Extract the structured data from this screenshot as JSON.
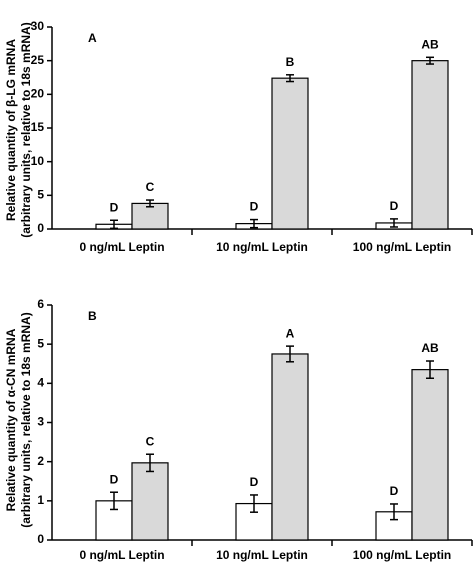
{
  "chart_data": [
    {
      "type": "bar",
      "panel_label": "A",
      "ylabel": "Relative quantity of β-LG mRNA",
      "ylabel_sub": "(arbitrary units, relative to 18s mRNA)",
      "categories": [
        "0 ng/mL Leptin",
        "10 ng/mL Leptin",
        "100 ng/mL Leptin"
      ],
      "series": [
        {
          "color": "#ffffff",
          "values": [
            0.7,
            0.8,
            0.9
          ],
          "errors": [
            0.6,
            0.6,
            0.6
          ],
          "letters": [
            "D",
            "D",
            "D"
          ]
        },
        {
          "color": "#d9d9d9",
          "values": [
            3.8,
            22.4,
            25.0
          ],
          "errors": [
            0.5,
            0.5,
            0.5
          ],
          "letters": [
            "C",
            "B",
            "AB"
          ]
        }
      ],
      "ylim": [
        0,
        30
      ],
      "yticks": [
        0,
        5,
        10,
        15,
        20,
        25,
        30
      ]
    },
    {
      "type": "bar",
      "panel_label": "B",
      "ylabel": "Relative quantity of α-CN mRNA",
      "ylabel_sub": "(arbitrary units, relative to 18s mRNA)",
      "categories": [
        "0 ng/mL Leptin",
        "10 ng/mL Leptin",
        "100 ng/mL Leptin"
      ],
      "series": [
        {
          "color": "#ffffff",
          "values": [
            1.0,
            0.93,
            0.72
          ],
          "errors": [
            0.22,
            0.22,
            0.2
          ],
          "letters": [
            "D",
            "D",
            "D"
          ]
        },
        {
          "color": "#d9d9d9",
          "values": [
            1.97,
            4.75,
            4.35
          ],
          "errors": [
            0.22,
            0.2,
            0.22
          ],
          "letters": [
            "C",
            "A",
            "AB"
          ]
        }
      ],
      "ylim": [
        0,
        6
      ],
      "yticks": [
        0,
        1,
        2,
        3,
        4,
        5,
        6
      ]
    }
  ]
}
